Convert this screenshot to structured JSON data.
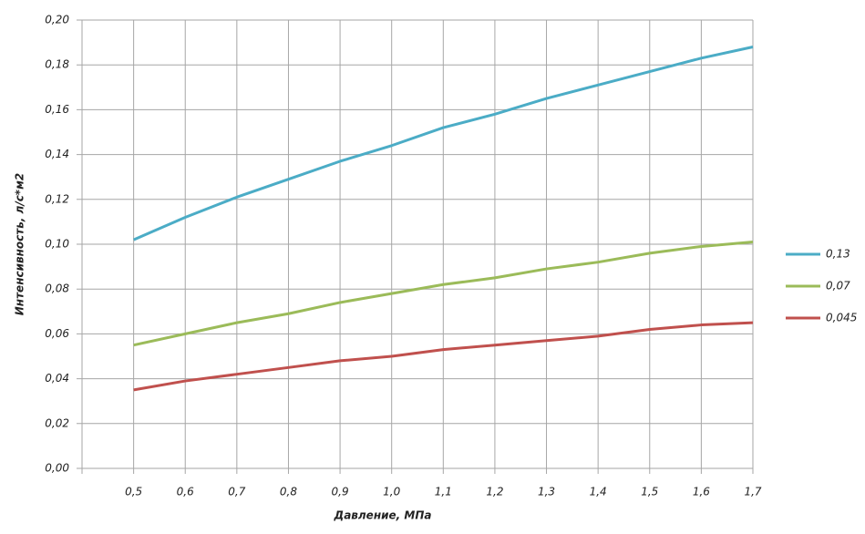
{
  "chart_data": {
    "type": "line",
    "xlabel": "Давление, МПа",
    "ylabel": "Интенсивность,  л/с*м2",
    "x": [
      0.5,
      0.6,
      0.7,
      0.8,
      0.9,
      1.0,
      1.1,
      1.2,
      1.3,
      1.4,
      1.5,
      1.6,
      1.7
    ],
    "series": [
      {
        "name": "0,13",
        "color": "#4bacc6",
        "values": [
          0.102,
          0.112,
          0.121,
          0.129,
          0.137,
          0.144,
          0.152,
          0.158,
          0.165,
          0.171,
          0.177,
          0.183,
          0.188
        ]
      },
      {
        "name": "0,07",
        "color": "#9bbb59",
        "values": [
          0.055,
          0.06,
          0.065,
          0.069,
          0.074,
          0.078,
          0.082,
          0.085,
          0.089,
          0.092,
          0.096,
          0.099,
          0.101
        ]
      },
      {
        "name": "0,045",
        "color": "#c0504d",
        "values": [
          0.035,
          0.039,
          0.042,
          0.045,
          0.048,
          0.05,
          0.053,
          0.055,
          0.057,
          0.059,
          0.062,
          0.064,
          0.065
        ]
      }
    ],
    "xlim": [
      0.4,
      1.7
    ],
    "xticks": [
      {
        "value": 0.5,
        "label": "0,5"
      },
      {
        "value": 0.6,
        "label": "0,6"
      },
      {
        "value": 0.7,
        "label": "0,7"
      },
      {
        "value": 0.8,
        "label": "0,8"
      },
      {
        "value": 0.9,
        "label": "0,9"
      },
      {
        "value": 1.0,
        "label": "1,0"
      },
      {
        "value": 1.1,
        "label": "1,1"
      },
      {
        "value": 1.2,
        "label": "1,2"
      },
      {
        "value": 1.3,
        "label": "1,3"
      },
      {
        "value": 1.4,
        "label": "1,4"
      },
      {
        "value": 1.5,
        "label": "1,5"
      },
      {
        "value": 1.6,
        "label": "1,6"
      },
      {
        "value": 1.7,
        "label": "1,7"
      }
    ],
    "ylim": [
      0,
      0.2
    ],
    "yticks": [
      {
        "value": 0,
        "label": "0,00"
      },
      {
        "value": 0.02,
        "label": "0,02"
      },
      {
        "value": 0.04,
        "label": "0,04"
      },
      {
        "value": 0.06,
        "label": "0,06"
      },
      {
        "value": 0.08,
        "label": "0,08"
      },
      {
        "value": 0.1,
        "label": "0,10"
      },
      {
        "value": 0.12,
        "label": "0,12"
      },
      {
        "value": 0.14,
        "label": "0,14"
      },
      {
        "value": 0.16,
        "label": "0,16"
      },
      {
        "value": 0.18,
        "label": "0,18"
      },
      {
        "value": 0.2,
        "label": "0,20"
      }
    ],
    "grid": true,
    "legend": "right"
  }
}
